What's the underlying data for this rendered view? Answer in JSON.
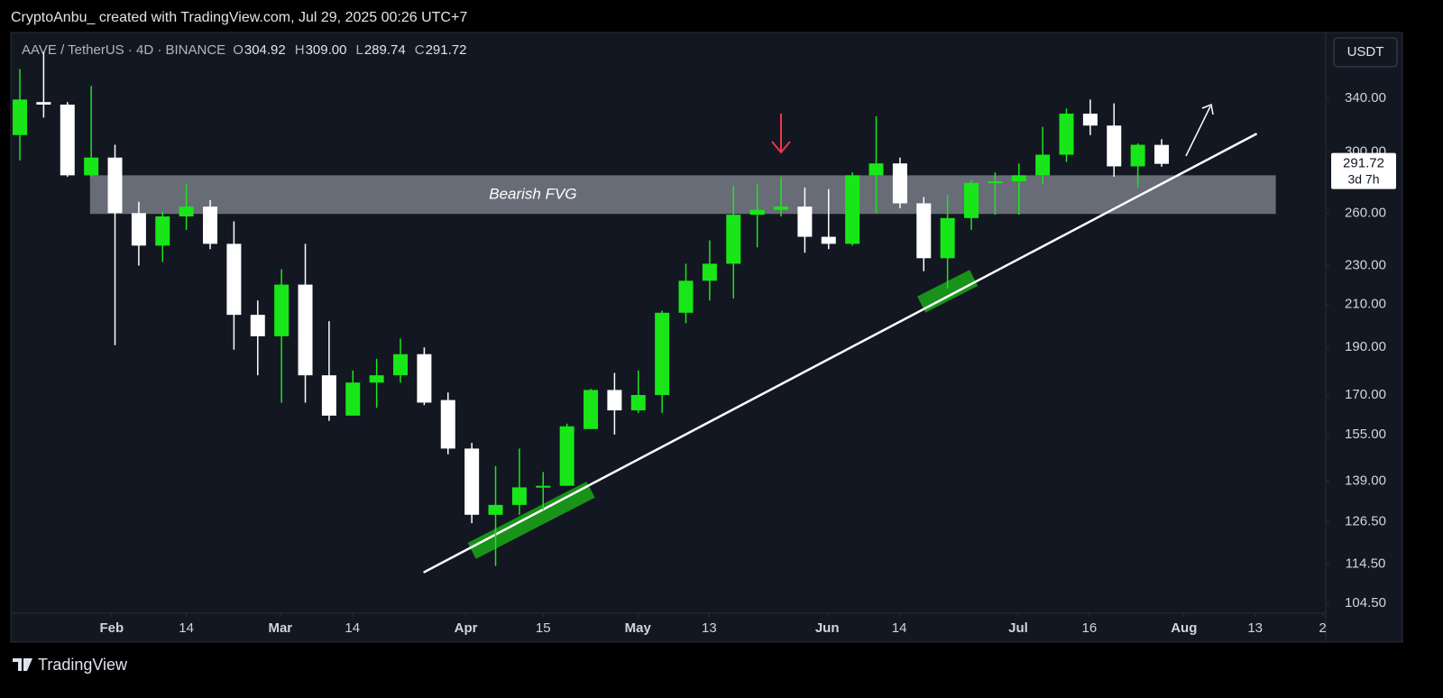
{
  "header": {
    "credit": "CryptoAnbu_ created with TradingView.com, Jul 29, 2025 00:26 UTC+7",
    "symbol": "AAVE / TetherUS · 4D · BINANCE",
    "ohlc_names": [
      "O",
      "H",
      "L",
      "C"
    ],
    "ohlc_labels": [
      "304.92",
      "309.00",
      "289.74",
      "291.72"
    ],
    "currency": "USDT",
    "brand": "TradingView"
  },
  "chart_data": {
    "type": "candlestick",
    "up_color": "#19e619",
    "down_color": "#ffffff",
    "background": "#131722",
    "yscale": "log",
    "open": [
      312,
      337,
      335,
      284,
      296,
      260,
      241,
      258,
      264,
      242,
      205,
      195,
      220,
      178,
      162,
      175,
      178,
      187,
      168,
      150,
      128.5,
      131.5,
      137,
      137.5,
      157,
      172,
      164,
      170,
      206,
      222,
      231,
      259,
      262,
      264,
      246,
      242,
      284,
      292,
      266,
      234,
      257,
      279,
      280,
      284,
      298,
      328,
      319,
      290,
      304.92
    ],
    "high": [
      364,
      379,
      337,
      350,
      305,
      267,
      261,
      278,
      268,
      255,
      212,
      228,
      242,
      202,
      180,
      185,
      194,
      190,
      171,
      152,
      144,
      150,
      142,
      159,
      172.5,
      179,
      180,
      207,
      231,
      244,
      277,
      278,
      283,
      276,
      275,
      286,
      326,
      296,
      270,
      271,
      281,
      286,
      292,
      318,
      332,
      339,
      336,
      306,
      309
    ],
    "low": [
      294,
      325,
      283,
      283,
      191,
      230,
      232,
      250,
      239,
      189,
      178,
      167,
      167,
      160,
      162,
      165,
      175,
      166,
      148,
      126,
      114,
      128.5,
      130,
      137.5,
      157,
      155,
      163,
      163,
      201,
      212,
      213,
      240,
      258,
      237,
      239,
      241,
      260,
      263,
      227,
      218,
      250,
      259,
      259,
      278,
      293,
      312,
      283,
      276,
      289.74
    ],
    "close": [
      339,
      335,
      284,
      296,
      260,
      241,
      258,
      264,
      242,
      205,
      195,
      220,
      178,
      162,
      175,
      178,
      187,
      167,
      150,
      128.5,
      131.5,
      137,
      137.5,
      158,
      172,
      164,
      170,
      206,
      222,
      231,
      259,
      262,
      264,
      246,
      242,
      284,
      292,
      266,
      234,
      257,
      279,
      280,
      284,
      298,
      328,
      319,
      290,
      305,
      291.72
    ],
    "last_price_label": "291.72",
    "countdown": "3d 7h",
    "xlim": [
      -0.38,
      54.9
    ],
    "ylim": [
      102.1,
      396.5
    ],
    "xticks": [
      {
        "value": 3.86,
        "label": "Feb"
      },
      {
        "value": 7.0,
        "label": "14"
      },
      {
        "value": 10.95,
        "label": "Mar"
      },
      {
        "value": 13.98,
        "label": "14"
      },
      {
        "value": 18.75,
        "label": "Apr"
      },
      {
        "value": 22.0,
        "label": "15"
      },
      {
        "value": 25.98,
        "label": "May"
      },
      {
        "value": 28.98,
        "label": "13"
      },
      {
        "value": 33.94,
        "label": "Jun"
      },
      {
        "value": 36.97,
        "label": "14"
      },
      {
        "value": 41.97,
        "label": "Jul"
      },
      {
        "value": 44.96,
        "label": "16"
      },
      {
        "value": 48.94,
        "label": "Aug"
      },
      {
        "value": 51.93,
        "label": "13"
      },
      {
        "value": 54.77,
        "label": "2"
      }
    ],
    "yticks": [
      {
        "value": 340,
        "label": "340.00"
      },
      {
        "value": 300,
        "label": "300.00"
      },
      {
        "value": 260,
        "label": "260.00"
      },
      {
        "value": 230,
        "label": "230.00"
      },
      {
        "value": 210,
        "label": "210.00"
      },
      {
        "value": 190,
        "label": "190.00"
      },
      {
        "value": 170,
        "label": "170.00"
      },
      {
        "value": 155,
        "label": "155.00"
      },
      {
        "value": 139,
        "label": "139.00"
      },
      {
        "value": 126.5,
        "label": "126.50"
      },
      {
        "value": 114.5,
        "label": "114.50"
      },
      {
        "value": 104.5,
        "label": "104.50"
      }
    ],
    "zone": {
      "label": "Bearish FVG",
      "x": [
        2.95,
        52.8
      ],
      "y": [
        259.5,
        284
      ],
      "color": "#787b86"
    },
    "trendline": {
      "x": [
        16.97,
        52.0
      ],
      "y": [
        112.3,
        313
      ],
      "color": "#ffffff"
    },
    "highlights": [
      {
        "x": [
          19.0,
          24.0
        ],
        "y": [
          118.1,
          136.3
        ]
      },
      {
        "x": [
          37.9,
          40.1
        ],
        "y": [
          210,
          223.5
        ]
      }
    ],
    "highlight_color": "#1aa01a"
  }
}
